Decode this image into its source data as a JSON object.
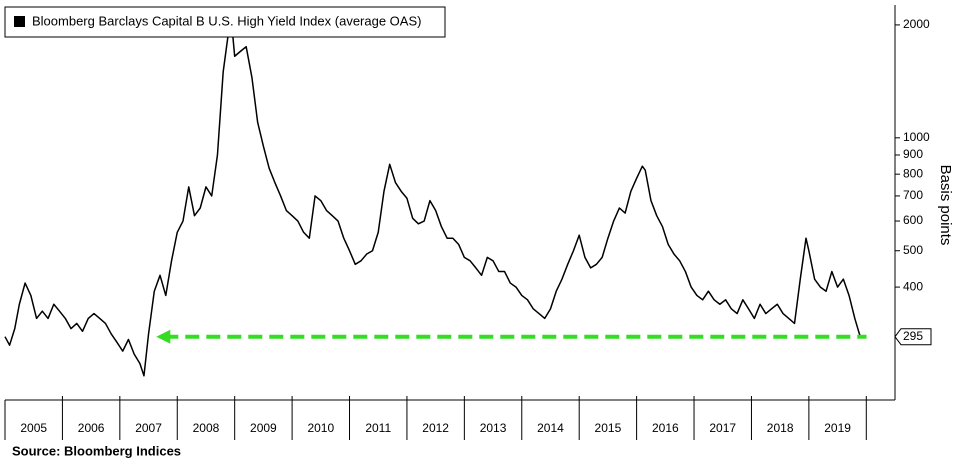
{
  "chart_data": {
    "type": "line",
    "legend": "Bloomberg Barclays Capital B U.S. High Yield Index (average OAS)",
    "legend_corner": "top-left",
    "y_axis_label": "Basis points",
    "source": "Source: Bloomberg Indices",
    "log_y": true,
    "xlim": [
      2005,
      2020.5
    ],
    "xticks": [
      {
        "value": 2005.5,
        "label": "2005"
      },
      {
        "value": 2006.5,
        "label": "2006"
      },
      {
        "value": 2007.5,
        "label": "2007"
      },
      {
        "value": 2008.5,
        "label": "2008"
      },
      {
        "value": 2009.5,
        "label": "2009"
      },
      {
        "value": 2010.5,
        "label": "2010"
      },
      {
        "value": 2011.5,
        "label": "2011"
      },
      {
        "value": 2012.5,
        "label": "2012"
      },
      {
        "value": 2013.5,
        "label": "2013"
      },
      {
        "value": 2014.5,
        "label": "2014"
      },
      {
        "value": 2015.5,
        "label": "2015"
      },
      {
        "value": 2016.5,
        "label": "2016"
      },
      {
        "value": 2017.5,
        "label": "2017"
      },
      {
        "value": 2018.5,
        "label": "2018"
      },
      {
        "value": 2019.5,
        "label": "2019"
      }
    ],
    "ylim": [
      200,
      2260
    ],
    "yticks": [
      2000,
      1000,
      900,
      800,
      700,
      600,
      500,
      400
    ],
    "reference_line": {
      "value": 295,
      "color": "#33dd22"
    },
    "x": [
      2005.0,
      2005.08,
      2005.17,
      2005.25,
      2005.35,
      2005.45,
      2005.55,
      2005.65,
      2005.75,
      2005.85,
      2005.95,
      2006.05,
      2006.15,
      2006.25,
      2006.35,
      2006.45,
      2006.55,
      2006.65,
      2006.75,
      2006.85,
      2006.95,
      2007.05,
      2007.15,
      2007.25,
      2007.35,
      2007.42,
      2007.5,
      2007.6,
      2007.7,
      2007.8,
      2007.9,
      2008.0,
      2008.1,
      2008.2,
      2008.3,
      2008.4,
      2008.5,
      2008.6,
      2008.7,
      2008.8,
      2008.9,
      2008.95,
      2009.0,
      2009.1,
      2009.2,
      2009.3,
      2009.4,
      2009.5,
      2009.6,
      2009.7,
      2009.8,
      2009.9,
      2010.0,
      2010.1,
      2010.2,
      2010.3,
      2010.4,
      2010.5,
      2010.6,
      2010.7,
      2010.8,
      2010.9,
      2011.0,
      2011.1,
      2011.2,
      2011.3,
      2011.4,
      2011.5,
      2011.6,
      2011.7,
      2011.8,
      2011.9,
      2012.0,
      2012.1,
      2012.2,
      2012.3,
      2012.4,
      2012.5,
      2012.6,
      2012.7,
      2012.8,
      2012.9,
      2013.0,
      2013.1,
      2013.2,
      2013.3,
      2013.4,
      2013.5,
      2013.6,
      2013.7,
      2013.8,
      2013.9,
      2014.0,
      2014.1,
      2014.2,
      2014.3,
      2014.4,
      2014.5,
      2014.6,
      2014.7,
      2014.8,
      2014.9,
      2015.0,
      2015.1,
      2015.2,
      2015.3,
      2015.4,
      2015.5,
      2015.6,
      2015.7,
      2015.8,
      2015.9,
      2016.0,
      2016.1,
      2016.15,
      2016.25,
      2016.35,
      2016.45,
      2016.55,
      2016.65,
      2016.75,
      2016.85,
      2016.95,
      2017.05,
      2017.15,
      2017.25,
      2017.35,
      2017.45,
      2017.55,
      2017.65,
      2017.75,
      2017.85,
      2017.95,
      2018.05,
      2018.15,
      2018.25,
      2018.35,
      2018.45,
      2018.55,
      2018.65,
      2018.75,
      2018.85,
      2018.95,
      2019.0,
      2019.1,
      2019.2,
      2019.3,
      2019.4,
      2019.5,
      2019.6,
      2019.7,
      2019.8,
      2019.88,
      2019.9
    ],
    "series": [
      {
        "name": "Bloomberg Barclays Capital B U.S. High Yield Index (average OAS)",
        "color": "#000000",
        "values": [
          295,
          280,
          310,
          360,
          410,
          380,
          330,
          345,
          330,
          360,
          345,
          330,
          310,
          320,
          305,
          330,
          340,
          330,
          320,
          300,
          285,
          270,
          290,
          265,
          250,
          232,
          300,
          390,
          430,
          380,
          470,
          560,
          600,
          740,
          620,
          650,
          740,
          700,
          900,
          1500,
          1950,
          2000,
          1650,
          1700,
          1750,
          1450,
          1100,
          950,
          830,
          760,
          700,
          640,
          620,
          600,
          560,
          540,
          700,
          680,
          640,
          620,
          600,
          540,
          500,
          460,
          470,
          490,
          500,
          560,
          720,
          850,
          760,
          720,
          690,
          610,
          590,
          600,
          680,
          640,
          580,
          540,
          540,
          520,
          480,
          470,
          450,
          430,
          480,
          470,
          440,
          440,
          410,
          400,
          380,
          370,
          350,
          340,
          330,
          350,
          390,
          420,
          460,
          500,
          550,
          480,
          450,
          460,
          480,
          540,
          600,
          650,
          630,
          720,
          780,
          840,
          820,
          680,
          620,
          580,
          520,
          490,
          470,
          440,
          400,
          380,
          370,
          390,
          370,
          360,
          370,
          350,
          340,
          370,
          350,
          330,
          360,
          340,
          350,
          360,
          340,
          330,
          320,
          420,
          540,
          500,
          420,
          400,
          390,
          440,
          400,
          420,
          380,
          330,
          300,
          295
        ]
      }
    ]
  }
}
